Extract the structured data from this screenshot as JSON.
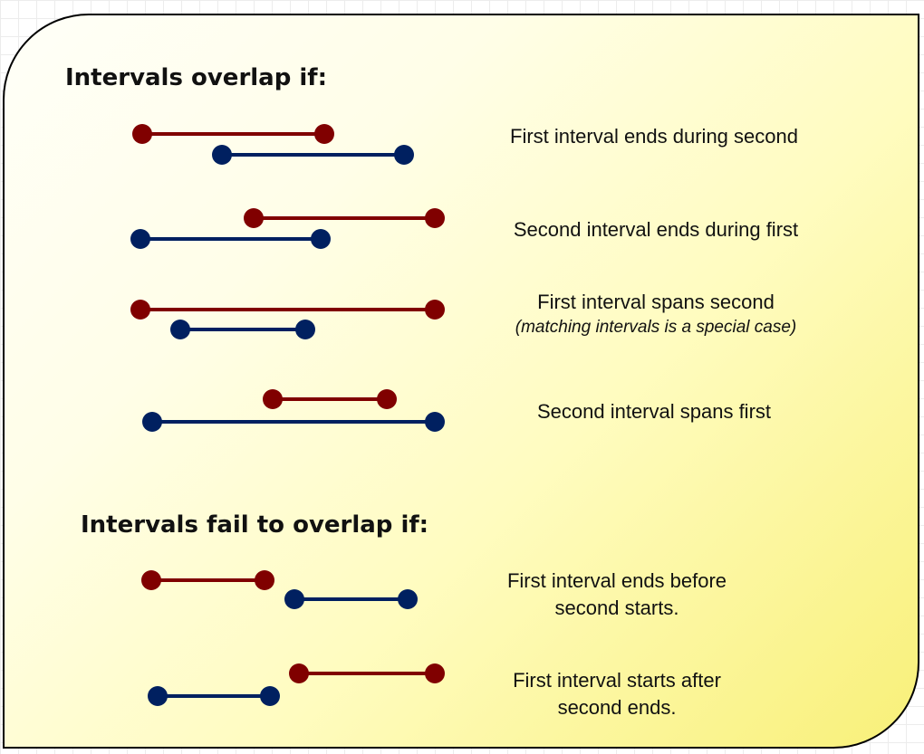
{
  "colors": {
    "first_interval": "#800000",
    "second_interval": "#002060"
  },
  "overlap_section": {
    "heading": "Intervals overlap if:",
    "cases": [
      {
        "caption": "First interval ends during second",
        "note": ""
      },
      {
        "caption": "Second interval ends during first",
        "note": ""
      },
      {
        "caption": "First interval spans second",
        "note": "(matching intervals is a special case)"
      },
      {
        "caption": "Second interval spans first",
        "note": ""
      }
    ]
  },
  "fail_section": {
    "heading": "Intervals fail to overlap if:",
    "cases": [
      {
        "caption_line1": "First interval ends before",
        "caption_line2": "second starts."
      },
      {
        "caption_line1": "First interval starts after",
        "caption_line2": "second ends."
      }
    ]
  }
}
